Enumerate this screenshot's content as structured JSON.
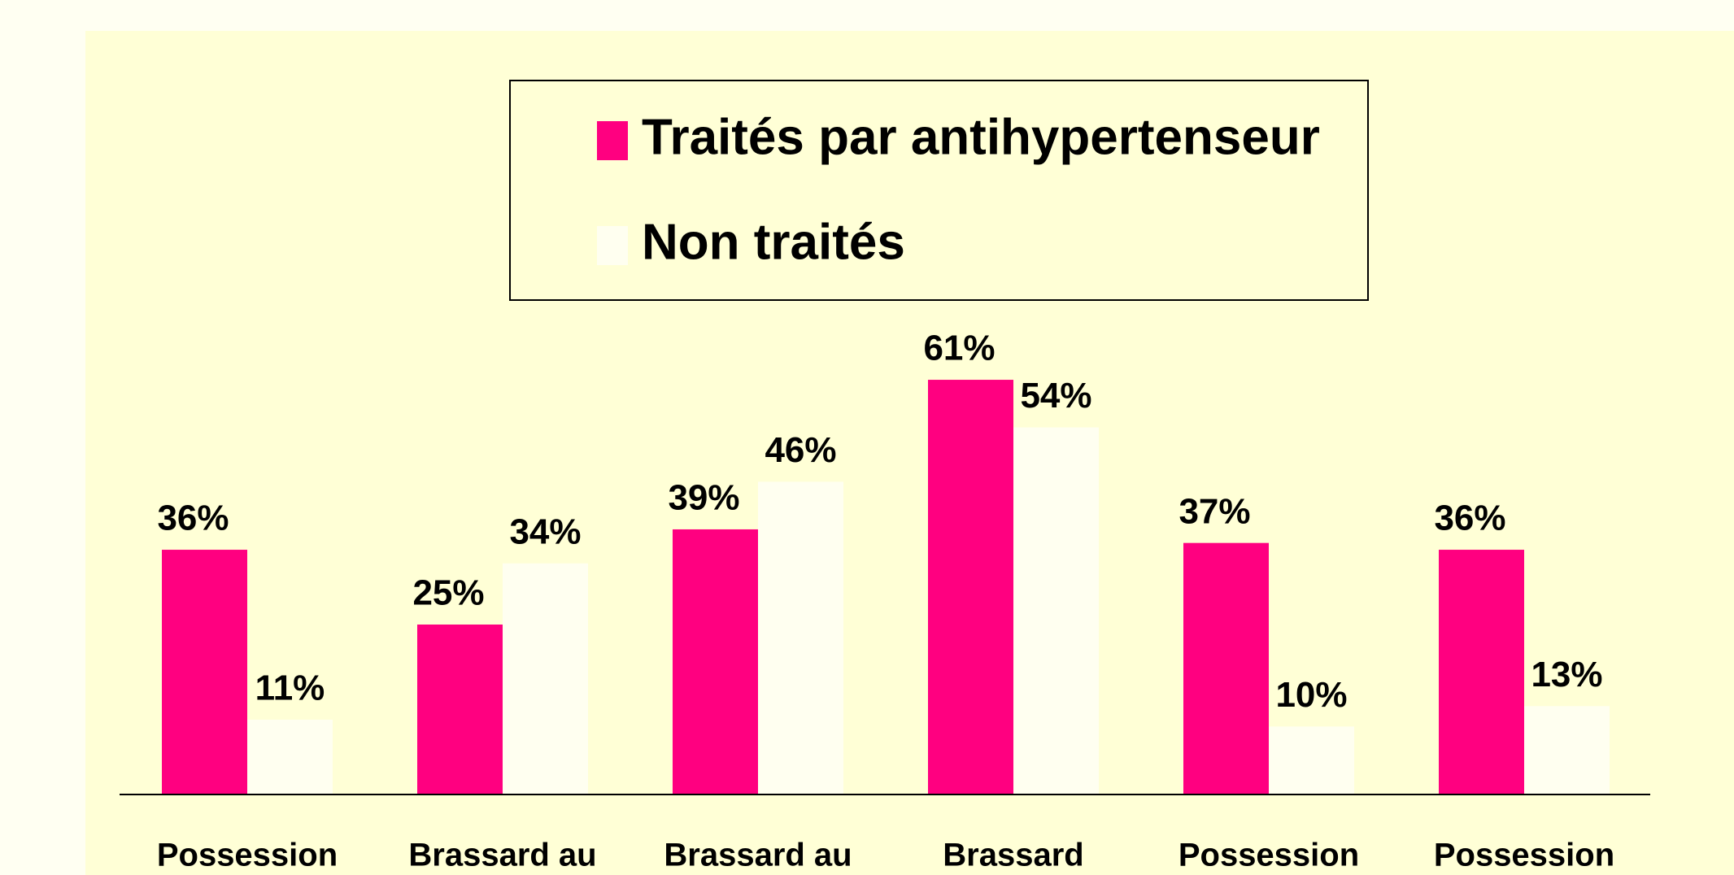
{
  "chart_data": {
    "type": "bar",
    "categories": [
      "Possession",
      "Brassard au",
      "Brassard au",
      "Brassard",
      "Possession",
      "Possession"
    ],
    "series": [
      {
        "name": "Traités par antihypertenseur",
        "color": "#ff0080",
        "values": [
          36,
          25,
          39,
          61,
          37,
          36
        ],
        "value_labels": [
          "36%",
          "25%",
          "39%",
          "61%",
          "37%",
          "36%"
        ]
      },
      {
        "name": "Non traités",
        "color": "#fffff0",
        "values": [
          11,
          34,
          46,
          54,
          10,
          13
        ],
        "value_labels": [
          "11%",
          "34%",
          "46%",
          "54%",
          "10%",
          "13%"
        ]
      }
    ],
    "legend": "top"
  }
}
